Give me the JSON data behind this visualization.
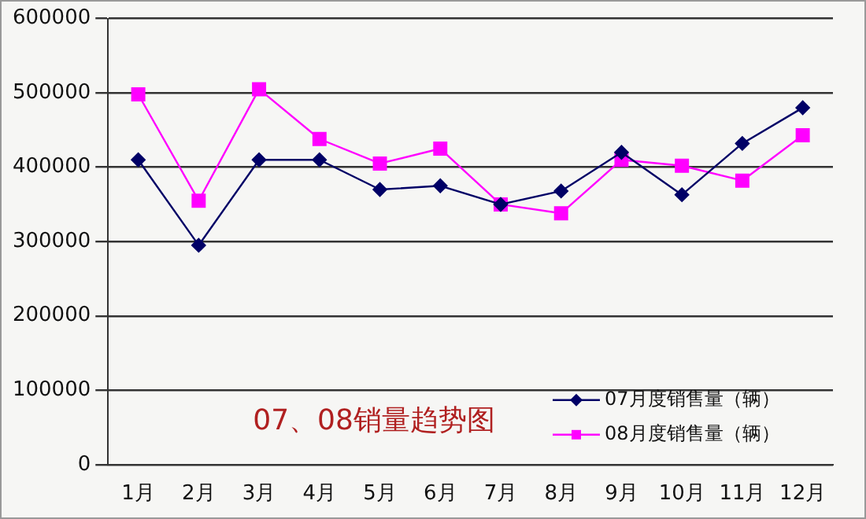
{
  "chart_data": {
    "type": "line",
    "title": "07、08销量趋势图",
    "categories": [
      "1月",
      "2月",
      "3月",
      "4月",
      "5月",
      "6月",
      "7月",
      "8月",
      "9月",
      "10月",
      "11月",
      "12月"
    ],
    "series": [
      {
        "name": "07月度销售量（辆）",
        "color": "#000066",
        "marker": "diamond",
        "values": [
          410000,
          295000,
          410000,
          410000,
          370000,
          375000,
          350000,
          368000,
          420000,
          363000,
          432000,
          480000
        ]
      },
      {
        "name": "08月度销售量（辆）",
        "color": "#ff00ff",
        "marker": "square",
        "values": [
          498000,
          355000,
          505000,
          438000,
          405000,
          425000,
          350000,
          338000,
          410000,
          402000,
          382000,
          443000
        ]
      }
    ],
    "ylim": [
      0,
      600000
    ],
    "yticks": [
      0,
      100000,
      200000,
      300000,
      400000,
      500000,
      600000
    ],
    "grid": "y",
    "legend": "bottom right"
  }
}
